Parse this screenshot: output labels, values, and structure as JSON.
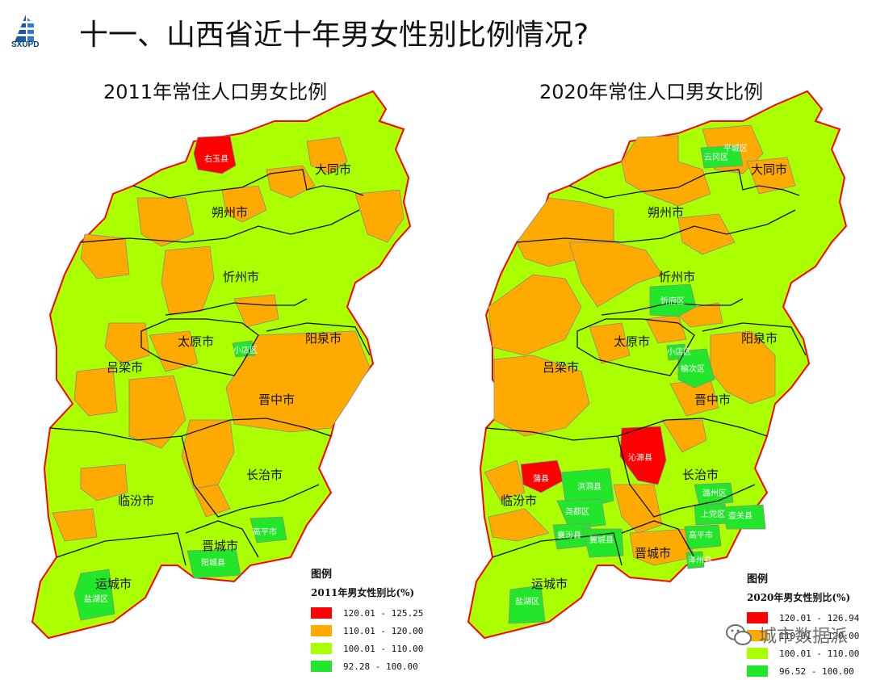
{
  "header": {
    "logo_text": "SXUPD",
    "title": "十一、山西省近十年男女性别比例情况?"
  },
  "colors": {
    "red": "#ff0000",
    "orange": "#ffaa00",
    "yellowgreen": "#aaff00",
    "green": "#22e62a",
    "border_black": "#111111",
    "province_outline_2011": "#ff0000",
    "province_outline_2020": "#ff0000"
  },
  "maps": [
    {
      "title": "2011年常住人口男女比例",
      "cities": [
        "大同市",
        "朔州市",
        "忻州市",
        "太原市",
        "阳泉市",
        "吕梁市",
        "晋中市",
        "长治市",
        "临汾市",
        "晋城市",
        "运城市"
      ],
      "districts": [
        "右玉县",
        "小店区",
        "高平市",
        "阳城县",
        "盐湖区"
      ],
      "legend": {
        "heading": "图例",
        "subtitle": "2011年男女性别比(%)",
        "items": [
          {
            "range": "120.01 - 125.25",
            "color": "#ff0000"
          },
          {
            "range": "110.01 - 120.00",
            "color": "#ffaa00"
          },
          {
            "range": "100.01 - 110.00",
            "color": "#aaff00"
          },
          {
            "range": "92.28 - 100.00",
            "color": "#22e62a"
          }
        ]
      }
    },
    {
      "title": "2020年常住人口男女比例",
      "cities": [
        "大同市",
        "朔州市",
        "忻州市",
        "太原市",
        "阳泉市",
        "吕梁市",
        "晋中市",
        "长治市",
        "临汾市",
        "晋城市",
        "运城市"
      ],
      "districts": [
        "云冈区",
        "平城区",
        "忻府区",
        "小店区",
        "榆次区",
        "沁源县",
        "蒲县",
        "洪洞县",
        "尧都区",
        "襄汾县",
        "翼城县",
        "潞州区",
        "上党区",
        "壶关县",
        "高平市",
        "泽州县",
        "盐湖区"
      ],
      "legend": {
        "heading": "图例",
        "subtitle": "2020年男女性别比(%)",
        "items": [
          {
            "range": "120.01 - 126.94",
            "color": "#ff0000"
          },
          {
            "range": "110.01 - 120.00",
            "color": "#ffaa00"
          },
          {
            "range": "100.01 - 110.00",
            "color": "#aaff00"
          },
          {
            "range": "96.52 - 100.00",
            "color": "#22e62a"
          }
        ]
      }
    }
  ],
  "watermark": "城市数据派"
}
